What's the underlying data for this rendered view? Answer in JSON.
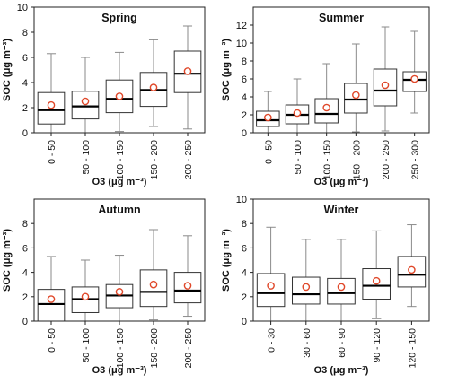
{
  "chart_data": [
    {
      "type": "box",
      "title": "Spring",
      "xlabel": "O3  (μg m⁻³)",
      "ylabel": "SOC  (μg m⁻³)",
      "ylim": [
        0,
        10
      ],
      "yticks": [
        0,
        2,
        4,
        6,
        8,
        10
      ],
      "categories": [
        "0 - 50",
        "50 - 100",
        "100 - 150",
        "150 - 200",
        "200 - 250"
      ],
      "boxes": [
        {
          "whisker_low": 0.0,
          "q1": 0.7,
          "median": 1.8,
          "q3": 3.2,
          "whisker_high": 6.3,
          "mean": 2.2
        },
        {
          "whisker_low": 0.0,
          "q1": 1.1,
          "median": 2.1,
          "q3": 3.3,
          "whisker_high": 6.0,
          "mean": 2.5
        },
        {
          "whisker_low": 0.1,
          "q1": 1.6,
          "median": 2.7,
          "q3": 4.2,
          "whisker_high": 6.4,
          "mean": 2.9
        },
        {
          "whisker_low": 0.5,
          "q1": 2.1,
          "median": 3.4,
          "q3": 4.8,
          "whisker_high": 7.4,
          "mean": 3.6
        },
        {
          "whisker_low": 0.3,
          "q1": 3.2,
          "median": 4.7,
          "q3": 6.5,
          "whisker_high": 8.5,
          "mean": 4.9
        }
      ]
    },
    {
      "type": "box",
      "title": "Summer",
      "xlabel": "O3  (μg m⁻³)",
      "ylabel": "SOC  (μg m⁻³)",
      "ylim": [
        0,
        14
      ],
      "yticks": [
        0,
        2,
        4,
        6,
        8,
        10,
        12
      ],
      "categories": [
        "0 - 50",
        "50 - 100",
        "100 - 150",
        "150 - 200",
        "200 - 250",
        "250 - 300"
      ],
      "boxes": [
        {
          "whisker_low": 0.0,
          "q1": 0.7,
          "median": 1.4,
          "q3": 2.4,
          "whisker_high": 4.6,
          "mean": 1.7
        },
        {
          "whisker_low": 0.0,
          "q1": 1.0,
          "median": 2.0,
          "q3": 3.1,
          "whisker_high": 6.0,
          "mean": 2.2
        },
        {
          "whisker_low": 0.0,
          "q1": 1.1,
          "median": 2.1,
          "q3": 3.8,
          "whisker_high": 7.7,
          "mean": 2.8
        },
        {
          "whisker_low": 0.1,
          "q1": 2.2,
          "median": 3.7,
          "q3": 5.5,
          "whisker_high": 9.9,
          "mean": 4.2
        },
        {
          "whisker_low": 0.2,
          "q1": 3.0,
          "median": 4.7,
          "q3": 7.1,
          "whisker_high": 11.8,
          "mean": 5.3
        },
        {
          "whisker_low": 2.2,
          "q1": 4.6,
          "median": 5.9,
          "q3": 6.8,
          "whisker_high": 11.3,
          "mean": 6.0
        }
      ]
    },
    {
      "type": "box",
      "title": "Autumn",
      "xlabel": "O3  (μg m⁻³)",
      "ylabel": "SOC  (μg m⁻³)",
      "ylim": [
        0,
        10
      ],
      "yticks": [
        0,
        2,
        4,
        6,
        8
      ],
      "categories": [
        "0 - 50",
        "50 - 100",
        "100 - 150",
        "150 - 200",
        "200 - 250"
      ],
      "boxes": [
        {
          "whisker_low": 0.0,
          "q1": 0.0,
          "median": 1.4,
          "q3": 2.6,
          "whisker_high": 5.3,
          "mean": 1.8
        },
        {
          "whisker_low": 0.0,
          "q1": 0.7,
          "median": 1.8,
          "q3": 2.8,
          "whisker_high": 5.0,
          "mean": 2.0
        },
        {
          "whisker_low": 0.0,
          "q1": 1.1,
          "median": 2.1,
          "q3": 3.0,
          "whisker_high": 5.4,
          "mean": 2.4
        },
        {
          "whisker_low": 0.1,
          "q1": 1.2,
          "median": 2.4,
          "q3": 4.2,
          "whisker_high": 7.5,
          "mean": 3.0
        },
        {
          "whisker_low": 0.4,
          "q1": 1.5,
          "median": 2.5,
          "q3": 4.0,
          "whisker_high": 7.0,
          "mean": 2.9
        }
      ]
    },
    {
      "type": "box",
      "title": "Winter",
      "xlabel": "O3  (μg m⁻³)",
      "ylabel": "SOC  (μg m⁻³)",
      "ylim": [
        0,
        10
      ],
      "yticks": [
        0,
        2,
        4,
        6,
        8,
        10
      ],
      "categories": [
        "0 - 30",
        "30 - 60",
        "60 - 90",
        "90 - 120",
        "120 - 150"
      ],
      "boxes": [
        {
          "whisker_low": 0.0,
          "q1": 1.2,
          "median": 2.3,
          "q3": 3.9,
          "whisker_high": 7.7,
          "mean": 2.9
        },
        {
          "whisker_low": 0.0,
          "q1": 1.4,
          "median": 2.2,
          "q3": 3.6,
          "whisker_high": 6.7,
          "mean": 2.8
        },
        {
          "whisker_low": 0.0,
          "q1": 1.4,
          "median": 2.3,
          "q3": 3.5,
          "whisker_high": 6.7,
          "mean": 2.8
        },
        {
          "whisker_low": 0.2,
          "q1": 1.8,
          "median": 2.9,
          "q3": 4.3,
          "whisker_high": 7.4,
          "mean": 3.3
        },
        {
          "whisker_low": 1.2,
          "q1": 2.8,
          "median": 3.8,
          "q3": 5.3,
          "whisker_high": 7.9,
          "mean": 4.2
        }
      ]
    }
  ]
}
